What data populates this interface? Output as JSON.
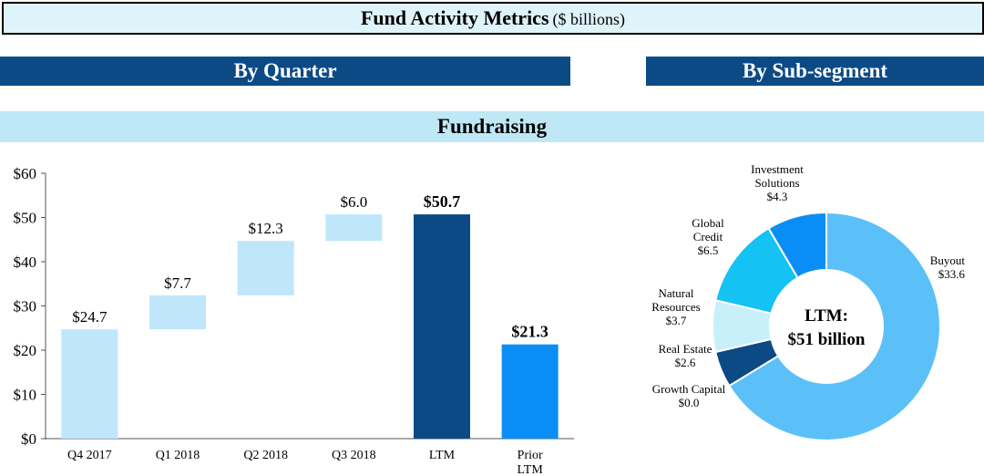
{
  "header": {
    "title": "Fund Activity Metrics",
    "title_unit": "($ billions)"
  },
  "sections": {
    "by_quarter": "By Quarter",
    "by_subsegment": "By Sub-segment",
    "fundraising": "Fundraising"
  },
  "chart_data": [
    {
      "type": "bar",
      "subtype": "waterfall",
      "categories": [
        "Q4 2017",
        "Q1 2018",
        "Q2 2018",
        "Q3 2018",
        "LTM",
        "Prior LTM"
      ],
      "values": [
        24.7,
        7.7,
        12.3,
        6.0,
        50.7,
        21.3
      ],
      "value_labels": [
        "$24.7",
        "$7.7",
        "$12.3",
        "$6.0",
        "$50.7",
        "$21.3"
      ],
      "bar_kinds": [
        "increment",
        "increment",
        "increment",
        "increment",
        "total",
        "total"
      ],
      "y_ticks": [
        "$0",
        "$10",
        "$20",
        "$30",
        "$40",
        "$50",
        "$60"
      ],
      "ylim": [
        0,
        60
      ],
      "grid": false,
      "colors": {
        "increment": "#bfe6fb",
        "total_ltm": "#0c4a86",
        "total_prior": "#0a8ef5"
      }
    },
    {
      "type": "pie",
      "subtype": "donut",
      "center_label": [
        "LTM:",
        "$51 billion"
      ],
      "slices": [
        {
          "name": [
            "Buyout"
          ],
          "value": 33.6,
          "value_label": "$33.6",
          "color": "#5cc0f8"
        },
        {
          "name": [
            "Growth Capital"
          ],
          "value": 0.0,
          "value_label": "$0.0",
          "color": "#2ea8f0"
        },
        {
          "name": [
            "Real Estate"
          ],
          "value": 2.6,
          "value_label": "$2.6",
          "color": "#0c4a86"
        },
        {
          "name": [
            "Natural",
            "Resources"
          ],
          "value": 3.7,
          "value_label": "$3.7",
          "color": "#c7f0fb"
        },
        {
          "name": [
            "Global",
            "Credit"
          ],
          "value": 6.5,
          "value_label": "$6.5",
          "color": "#14c2f3"
        },
        {
          "name": [
            "Investment",
            "Solutions"
          ],
          "value": 4.3,
          "value_label": "$4.3",
          "color": "#0a8ef5"
        }
      ]
    }
  ]
}
